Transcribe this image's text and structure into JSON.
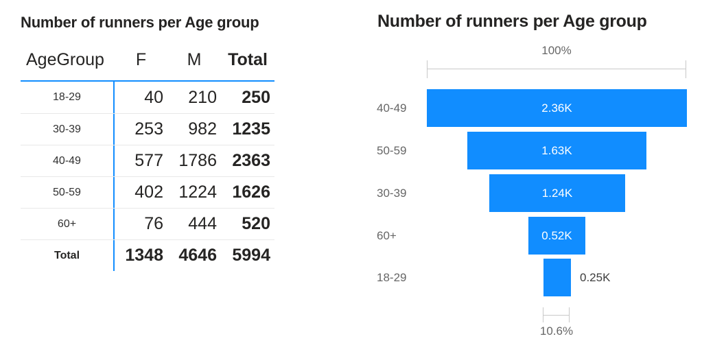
{
  "colors": {
    "bar_blue": "#118DFF",
    "table_accent_blue": "#118DFF",
    "text_dark": "#252423",
    "text_gray": "#666666",
    "bracket_gray": "#C8C8C8",
    "row_divider": "#E8E8E8",
    "inside_label": "#FFFFFF"
  },
  "chart_data": [
    {
      "type": "table",
      "title": "Number of runners per Age group",
      "columns": [
        "AgeGroup",
        "F",
        "M",
        "Total"
      ],
      "rows": [
        [
          "18-29",
          40,
          210,
          250
        ],
        [
          "30-39",
          253,
          982,
          1235
        ],
        [
          "40-49",
          577,
          1786,
          2363
        ],
        [
          "50-59",
          402,
          1224,
          1626
        ],
        [
          "60+",
          76,
          444,
          520
        ]
      ],
      "total_row": [
        "Total",
        1348,
        4646,
        5994
      ]
    },
    {
      "type": "bar",
      "subtype": "funnel",
      "title": "Number of runners per Age group",
      "categories": [
        "40-49",
        "50-59",
        "30-39",
        "60+",
        "18-29"
      ],
      "values": [
        2363,
        1626,
        1235,
        520,
        250
      ],
      "value_labels": [
        "2.36K",
        "1.63K",
        "1.24K",
        "0.52K",
        "0.25K"
      ],
      "top_annotation": "100%",
      "bottom_annotation": "10.6%",
      "bar_color": "#118DFF",
      "xlim_percent": [
        0,
        100
      ],
      "legend": "none",
      "grid": "off"
    }
  ]
}
